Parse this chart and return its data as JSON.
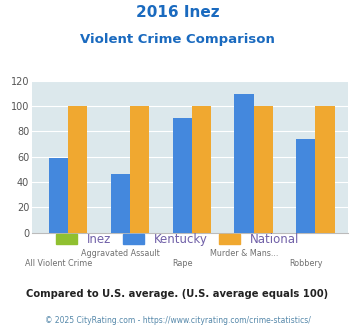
{
  "title_line1": "2016 Inez",
  "title_line2": "Violent Crime Comparison",
  "inez_values": [
    0,
    0,
    0,
    0,
    0
  ],
  "kentucky_values": [
    59,
    46,
    91,
    110,
    74
  ],
  "national_values": [
    100,
    100,
    100,
    100,
    100
  ],
  "inez_color": "#90c030",
  "kentucky_color": "#4488dd",
  "national_color": "#f0a830",
  "bg_color": "#dce8ec",
  "ylim": [
    0,
    120
  ],
  "yticks": [
    0,
    20,
    40,
    60,
    80,
    100,
    120
  ],
  "xlabel_top": [
    "",
    "Aggravated Assault",
    "",
    "Murder & Mans...",
    ""
  ],
  "xlabel_bottom": [
    "All Violent Crime",
    "",
    "Rape",
    "",
    "Robbery"
  ],
  "title_color": "#1a6abf",
  "legend_text_color": "#7060a8",
  "footnote1": "Compared to U.S. average. (U.S. average equals 100)",
  "footnote2": "© 2025 CityRating.com - https://www.cityrating.com/crime-statistics/",
  "footnote1_color": "#222222",
  "footnote2_color": "#5588aa"
}
